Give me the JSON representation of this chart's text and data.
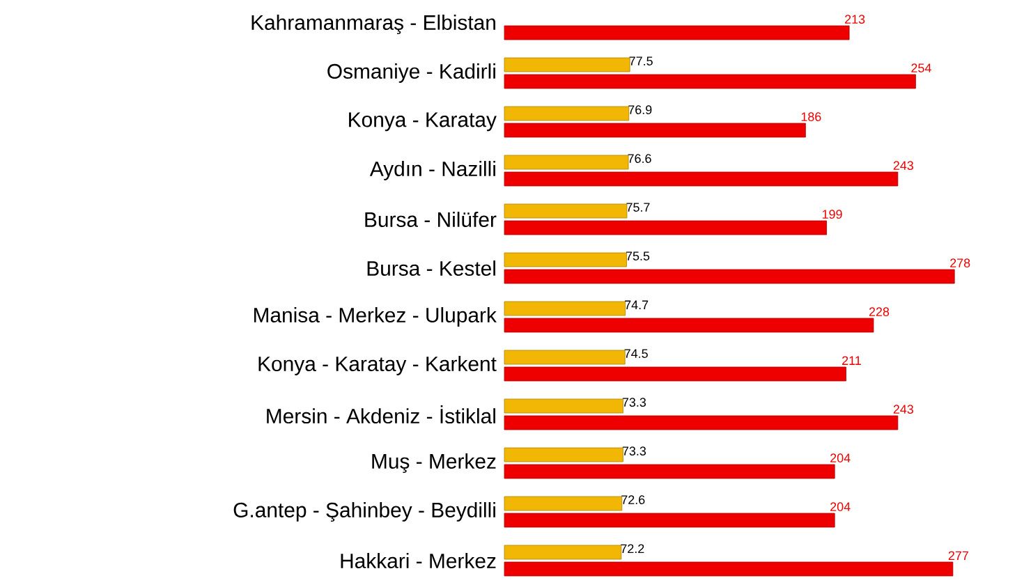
{
  "chart_data": {
    "type": "bar",
    "orientation": "horizontal",
    "data_labels": true,
    "categories": [
      "Kahramanmaraş - Elbistan",
      "Osmaniye - Kadirli",
      "Konya - Karatay",
      "Aydın - Nazilli",
      "Bursa - Nilüfer",
      "Bursa - Kestel",
      "Manisa - Merkez - Ulupark",
      "Konya - Karatay - Karkent",
      "Mersin - Akdeniz - İstiklal",
      "Muş - Merkez",
      "G.antep - Şahinbey - Beydilli",
      "Hakkari - Merkez"
    ],
    "series": [
      {
        "color": "#f2b705",
        "values": [
          null,
          77.5,
          76.9,
          76.6,
          75.7,
          75.5,
          74.7,
          74.5,
          73.3,
          73.3,
          72.6,
          72.2
        ]
      },
      {
        "color": "#ee0000",
        "values": [
          213,
          254,
          186,
          243,
          199,
          278,
          228,
          211,
          243,
          204,
          204,
          277
        ]
      }
    ]
  }
}
